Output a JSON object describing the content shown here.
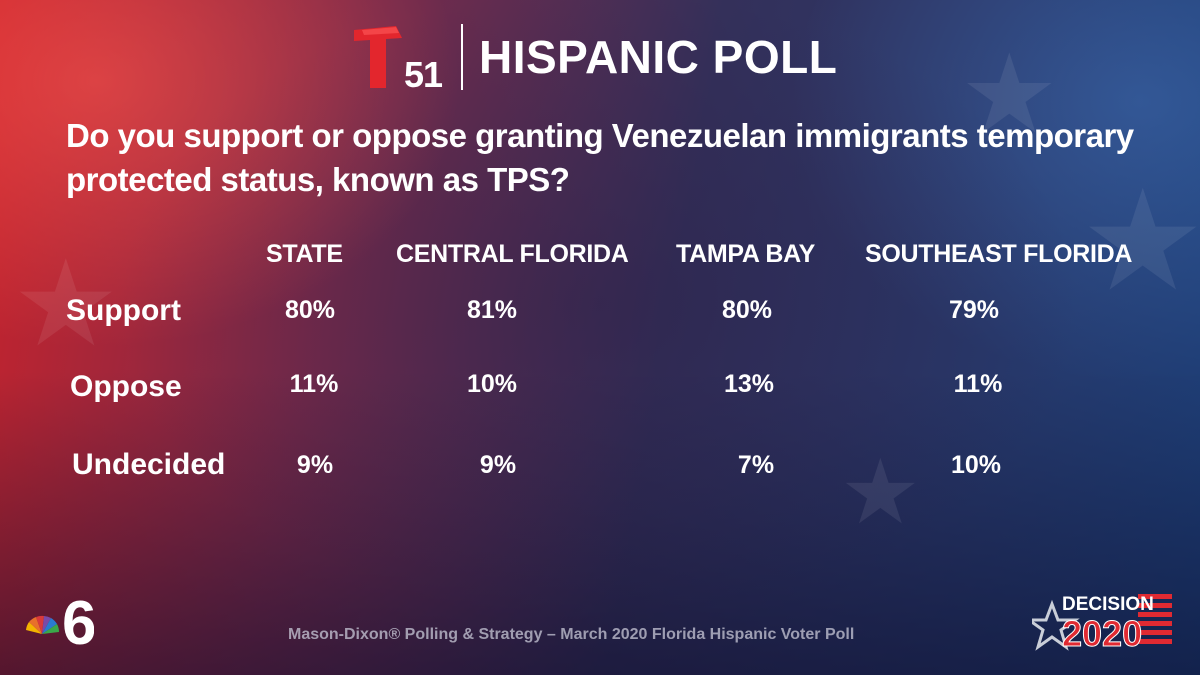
{
  "header": {
    "logo_number": "51",
    "title": "HISPANIC POLL"
  },
  "question": "Do you support or oppose granting Venezuelan immigrants temporary protected status, known as TPS?",
  "chart_data": {
    "type": "table",
    "columns": [
      "STATE",
      "CENTRAL FLORIDA",
      "TAMPA BAY",
      "SOUTHEAST FLORIDA"
    ],
    "rows": [
      {
        "label": "Support",
        "values": [
          "80%",
          "81%",
          "80%",
          "79%"
        ]
      },
      {
        "label": "Oppose",
        "values": [
          "11%",
          "10%",
          "13%",
          "11%"
        ]
      },
      {
        "label": "Undecided",
        "values": [
          "9%",
          "9%",
          "7%",
          "10%"
        ]
      }
    ]
  },
  "footer": {
    "source": "Mason-Dixon® Polling & Strategy – March 2020 Florida Hispanic Voter Poll",
    "station_number": "6",
    "decision_word": "DECISION",
    "decision_year": "2020"
  },
  "colors": {
    "telemundo_red": "#e3262d",
    "nbc_peacock": [
      "#f4b400",
      "#e8702a",
      "#d93a3a",
      "#7a4aa8",
      "#2a7ad0",
      "#3aa84a"
    ],
    "decision_red": "#e02a32",
    "decision_blue": "#1e3a8a"
  }
}
